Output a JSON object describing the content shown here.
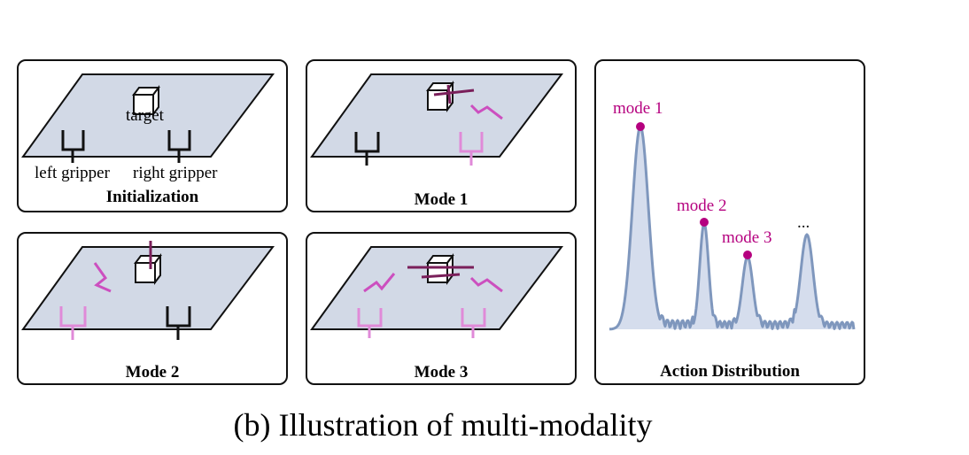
{
  "panels": {
    "init": {
      "title": "Initialization",
      "target": "target",
      "left_gripper": "left gripper",
      "right_gripper": "right gripper"
    },
    "mode1": {
      "title": "Mode 1"
    },
    "mode2": {
      "title": "Mode 2"
    },
    "mode3": {
      "title": "Mode 3"
    },
    "dist": {
      "title": "Action Distribution",
      "labels": [
        "mode 1",
        "mode 2",
        "mode 3",
        "..."
      ]
    }
  },
  "colors": {
    "plane": "#d2d9e6",
    "gripper_dark": "#111111",
    "gripper_light": "#e08ad8",
    "gripper_mid": "#cc4fbf",
    "trajectory": "#7a1f5a",
    "curve": "#7f97bd",
    "curve_fill": "#d5dded",
    "mode_marker": "#b5007f"
  },
  "caption": "(b) Illustration of multi-modality"
}
